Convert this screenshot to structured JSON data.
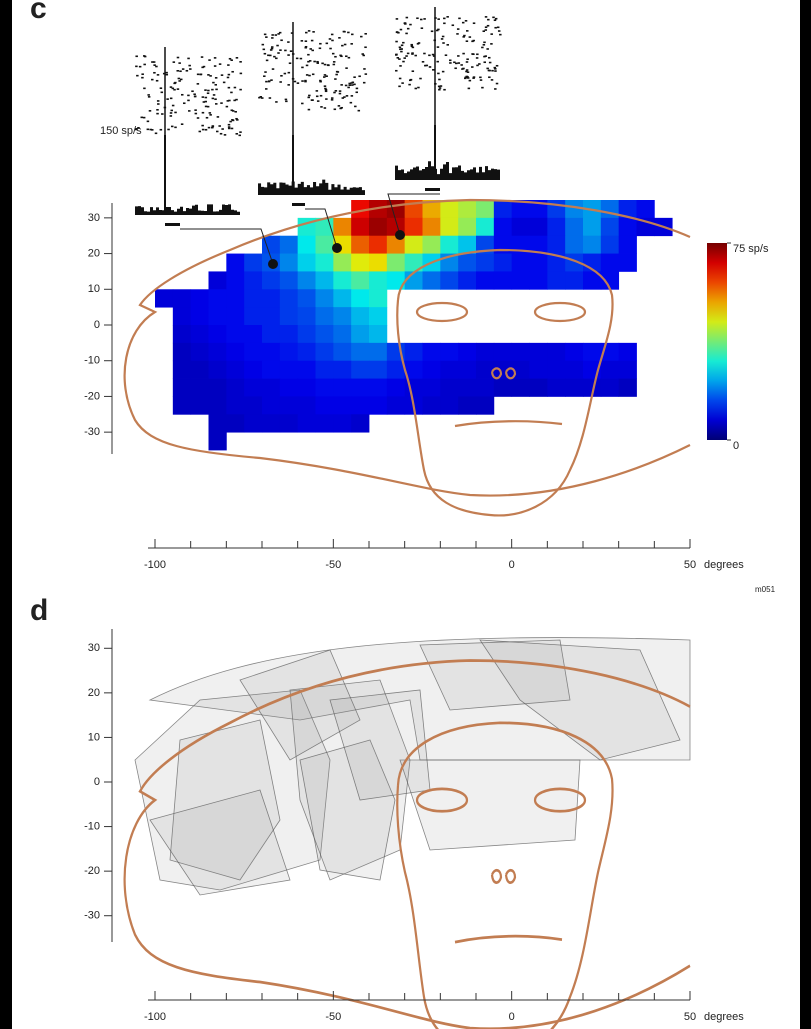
{
  "chart_data": [
    {
      "type": "heatmap",
      "panel": "c",
      "xlim": [
        -100,
        50
      ],
      "ylim": [
        -35,
        35
      ],
      "xticks": [
        -100,
        -50,
        0,
        50
      ],
      "xminorticks": [
        -90,
        -80,
        -70,
        -60,
        -40,
        -30,
        -20,
        -10,
        10,
        20,
        30,
        40
      ],
      "yticks": [
        -30,
        -20,
        -10,
        0,
        10,
        20,
        30
      ],
      "x_label": "degrees",
      "note": "m051",
      "inset_label": "150 sp/s",
      "colormap": "jet",
      "zlim": [
        0,
        75
      ],
      "colorbar_ticks": [
        {
          "value": 0,
          "label": "0"
        },
        {
          "value": 75,
          "label": "75 sp/s"
        }
      ],
      "x": [
        -97.5,
        -92.5,
        -87.5,
        -82.5,
        -77.5,
        -72.5,
        -67.5,
        -62.5,
        -57.5,
        -52.5,
        -47.5,
        -42.5,
        -37.5,
        -32.5,
        -27.5,
        -22.5,
        -17.5,
        -12.5,
        -7.5,
        -2.5,
        2.5,
        7.5,
        12.5,
        17.5,
        22.5,
        27.5,
        32.5,
        37.5,
        42.5
      ],
      "y": [
        32.5,
        27.5,
        22.5,
        17.5,
        12.5,
        7.5,
        2.5,
        -2.5,
        -7.5,
        -12.5,
        -17.5,
        -22.5,
        -27.5,
        -32.5
      ],
      "values": [
        [
          null,
          null,
          null,
          null,
          null,
          null,
          null,
          null,
          null,
          null,
          null,
          65,
          70,
          72,
          60,
          52,
          45,
          42,
          38,
          12,
          10,
          10,
          14,
          20,
          22,
          18,
          12,
          10,
          null
        ],
        [
          null,
          null,
          null,
          null,
          null,
          null,
          null,
          null,
          30,
          32,
          55,
          68,
          72,
          70,
          62,
          55,
          45,
          40,
          30,
          10,
          8,
          8,
          12,
          18,
          22,
          15,
          10,
          8,
          8
        ],
        [
          null,
          null,
          null,
          null,
          null,
          null,
          15,
          18,
          28,
          34,
          48,
          58,
          62,
          55,
          45,
          40,
          30,
          25,
          15,
          10,
          10,
          10,
          12,
          18,
          20,
          14,
          10,
          null,
          null
        ],
        [
          null,
          null,
          null,
          null,
          10,
          14,
          16,
          20,
          26,
          30,
          40,
          46,
          48,
          38,
          32,
          26,
          20,
          16,
          14,
          12,
          10,
          10,
          12,
          14,
          12,
          10,
          10,
          null,
          null
        ],
        [
          null,
          null,
          null,
          8,
          10,
          12,
          14,
          16,
          20,
          24,
          30,
          34,
          30,
          28,
          22,
          18,
          15,
          12,
          10,
          10,
          10,
          10,
          12,
          12,
          10,
          10,
          null,
          null,
          null
        ],
        [
          8,
          8,
          9,
          10,
          10,
          12,
          12,
          14,
          16,
          20,
          24,
          28,
          30,
          null,
          null,
          null,
          null,
          null,
          null,
          null,
          null,
          null,
          null,
          null,
          null,
          null,
          null,
          null,
          null
        ],
        [
          null,
          8,
          9,
          10,
          10,
          12,
          12,
          14,
          15,
          18,
          20,
          24,
          26,
          null,
          null,
          null,
          null,
          null,
          null,
          null,
          null,
          null,
          null,
          null,
          null,
          null,
          null,
          null,
          null
        ],
        [
          null,
          7,
          8,
          9,
          10,
          10,
          12,
          12,
          14,
          16,
          18,
          22,
          24,
          null,
          null,
          null,
          null,
          null,
          null,
          null,
          null,
          null,
          null,
          null,
          null,
          null,
          null,
          null,
          null
        ],
        [
          null,
          6,
          7,
          8,
          9,
          10,
          10,
          11,
          12,
          14,
          16,
          18,
          18,
          14,
          12,
          10,
          10,
          9,
          8,
          8,
          8,
          8,
          8,
          9,
          10,
          10,
          9,
          null,
          null
        ],
        [
          null,
          6,
          6,
          7,
          8,
          9,
          10,
          10,
          10,
          12,
          12,
          14,
          14,
          12,
          10,
          9,
          8,
          8,
          7,
          7,
          7,
          8,
          8,
          8,
          9,
          8,
          8,
          null,
          null
        ],
        [
          null,
          6,
          6,
          6,
          7,
          8,
          8,
          9,
          9,
          10,
          10,
          10,
          10,
          9,
          8,
          8,
          7,
          7,
          7,
          6,
          6,
          6,
          7,
          7,
          7,
          7,
          6,
          null,
          null
        ],
        [
          null,
          6,
          6,
          6,
          7,
          7,
          8,
          8,
          8,
          9,
          9,
          9,
          9,
          8,
          8,
          7,
          7,
          6,
          6,
          null,
          null,
          null,
          null,
          null,
          null,
          null,
          null,
          null,
          null
        ],
        [
          null,
          null,
          null,
          6,
          6,
          7,
          7,
          7,
          8,
          8,
          8,
          7,
          null,
          null,
          null,
          null,
          null,
          null,
          null,
          null,
          null,
          null,
          null,
          null,
          null,
          null,
          null,
          null,
          null
        ],
        [
          null,
          null,
          null,
          6,
          null,
          null,
          null,
          null,
          null,
          null,
          null,
          null,
          null,
          null,
          null,
          null,
          null,
          null,
          null,
          null,
          null,
          null,
          null,
          null,
          null,
          null,
          null,
          null,
          null
        ]
      ]
    },
    {
      "type": "overlay",
      "panel": "d",
      "xlim": [
        -100,
        50
      ],
      "ylim": [
        -35,
        35
      ],
      "xticks": [
        -100,
        -50,
        0,
        50
      ],
      "xminorticks": [
        -90,
        -80,
        -70,
        -60,
        -40,
        -30,
        -20,
        -10,
        10,
        20,
        30,
        40
      ],
      "yticks": [
        -30,
        -20,
        -10,
        0,
        10,
        20,
        30
      ],
      "x_label": "degrees"
    }
  ]
}
